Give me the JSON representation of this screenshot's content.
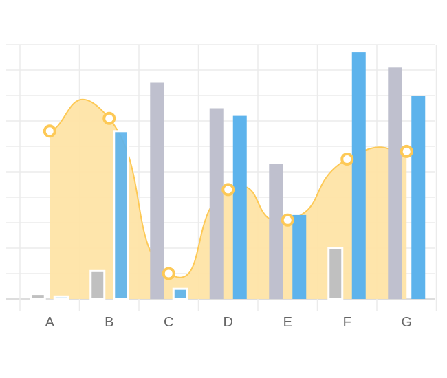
{
  "chart_data": {
    "type": "bar",
    "categories": [
      "A",
      "B",
      "C",
      "D",
      "E",
      "F",
      "G"
    ],
    "ylim": [
      0,
      100
    ],
    "grid": true,
    "series": [
      {
        "type": "area",
        "values": [
          66,
          71,
          10,
          43,
          31,
          55,
          58
        ],
        "color": "#FDC956",
        "fill": "#FEE4A6"
      },
      {
        "type": "bar",
        "values": [
          2,
          11,
          85,
          75,
          53,
          20,
          91
        ],
        "color": "#BFC0CE",
        "highlight_color": "#C0C0C0"
      },
      {
        "type": "bar",
        "values": [
          1,
          66,
          4,
          72,
          33,
          97,
          80
        ],
        "color": "#5DB3EC"
      }
    ]
  },
  "colors": {
    "grid": "#EBEBEB",
    "axis": "#DDDDDD",
    "tick_text": "#666666",
    "bar_border": "#FFFFFF"
  }
}
